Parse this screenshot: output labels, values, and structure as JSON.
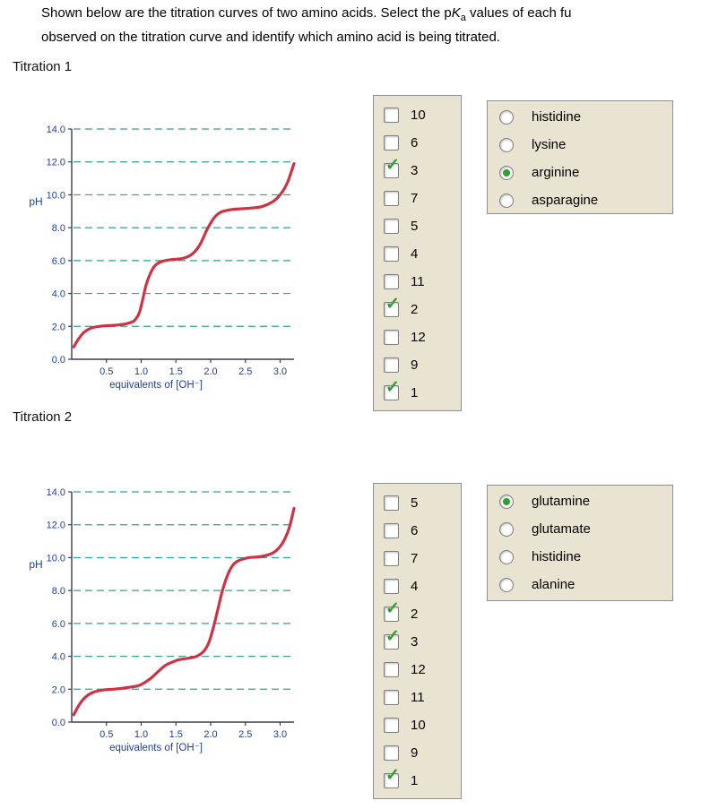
{
  "question": {
    "line1_pre": "Shown below are the titration curves of two amino acids. Select the p",
    "line1_k_italic": "K",
    "line1_k_sub": "a",
    "line1_post": " values of each fu",
    "line2": "observed on the titration curve and identify which amino acid is being titrated."
  },
  "icons": {
    "check": "✓"
  },
  "colors": {
    "curve": "#cc3344",
    "grid": "#2fa28e",
    "axis": "#3b3b4f",
    "tick_text": "#21409a",
    "panel_bg": "#e9e4d1",
    "panel_border": "#8f8f8f",
    "check_green": "#2f9b35",
    "radio_green": "#28a42c"
  },
  "sections": [
    {
      "title": "Titration 1",
      "pka_options": [
        {
          "label": "10",
          "checked": false
        },
        {
          "label": "6",
          "checked": false
        },
        {
          "label": "3",
          "checked": true
        },
        {
          "label": "7",
          "checked": false
        },
        {
          "label": "5",
          "checked": false
        },
        {
          "label": "4",
          "checked": false
        },
        {
          "label": "11",
          "checked": false
        },
        {
          "label": "2",
          "checked": true
        },
        {
          "label": "12",
          "checked": false
        },
        {
          "label": "9",
          "checked": false
        },
        {
          "label": "1",
          "checked": true
        }
      ],
      "amino_options": [
        {
          "label": "histidine",
          "selected": false
        },
        {
          "label": "lysine",
          "selected": false
        },
        {
          "label": "arginine",
          "selected": true
        },
        {
          "label": "asparagine",
          "selected": false
        }
      ]
    },
    {
      "title": "Titration 2",
      "pka_options": [
        {
          "label": "5",
          "checked": false
        },
        {
          "label": "6",
          "checked": false
        },
        {
          "label": "7",
          "checked": false
        },
        {
          "label": "4",
          "checked": false
        },
        {
          "label": "2",
          "checked": true
        },
        {
          "label": "3",
          "checked": true
        },
        {
          "label": "12",
          "checked": false
        },
        {
          "label": "11",
          "checked": false
        },
        {
          "label": "10",
          "checked": false
        },
        {
          "label": "9",
          "checked": false
        },
        {
          "label": "1",
          "checked": true
        }
      ],
      "amino_options": [
        {
          "label": "glutamine",
          "selected": true
        },
        {
          "label": "glutamate",
          "selected": false
        },
        {
          "label": "histidine",
          "selected": false
        },
        {
          "label": "alanine",
          "selected": false
        }
      ]
    }
  ],
  "chart_data": [
    {
      "type": "line",
      "title": "Titration 1",
      "ylabel": "pH",
      "xlabel": "equivalents of [OH⁻]",
      "xlim": [
        0,
        3.2
      ],
      "ylim": [
        0,
        14
      ],
      "xticks": [
        0.5,
        1.0,
        1.5,
        2.0,
        2.5,
        3.0
      ],
      "yticks": [
        0.0,
        2.0,
        4.0,
        6.0,
        8.0,
        10.0,
        12.0,
        14.0
      ],
      "grid_y": [
        2,
        4,
        6,
        8,
        10,
        12,
        14
      ],
      "grid_style": "dashed",
      "legend": "none",
      "curve_color": "#cc3344",
      "points": [
        [
          0.03,
          0.75
        ],
        [
          0.1,
          1.25
        ],
        [
          0.18,
          1.65
        ],
        [
          0.28,
          1.9
        ],
        [
          0.4,
          2.0
        ],
        [
          0.55,
          2.05
        ],
        [
          0.7,
          2.1
        ],
        [
          0.82,
          2.2
        ],
        [
          0.9,
          2.35
        ],
        [
          0.97,
          2.8
        ],
        [
          1.02,
          3.6
        ],
        [
          1.07,
          4.5
        ],
        [
          1.13,
          5.2
        ],
        [
          1.2,
          5.7
        ],
        [
          1.3,
          5.95
        ],
        [
          1.42,
          6.05
        ],
        [
          1.55,
          6.1
        ],
        [
          1.65,
          6.2
        ],
        [
          1.75,
          6.45
        ],
        [
          1.85,
          7.0
        ],
        [
          1.95,
          7.9
        ],
        [
          2.05,
          8.6
        ],
        [
          2.15,
          8.95
        ],
        [
          2.3,
          9.1
        ],
        [
          2.45,
          9.15
        ],
        [
          2.6,
          9.2
        ],
        [
          2.75,
          9.3
        ],
        [
          2.9,
          9.6
        ],
        [
          3.0,
          10.0
        ],
        [
          3.1,
          10.7
        ],
        [
          3.2,
          11.9
        ]
      ]
    },
    {
      "type": "line",
      "title": "Titration 2",
      "ylabel": "pH",
      "xlabel": "equivalents of [OH⁻]",
      "xlim": [
        0,
        3.2
      ],
      "ylim": [
        0,
        14
      ],
      "xticks": [
        0.5,
        1.0,
        1.5,
        2.0,
        2.5,
        3.0
      ],
      "yticks": [
        0.0,
        2.0,
        4.0,
        6.0,
        8.0,
        10.0,
        12.0,
        14.0
      ],
      "grid_y": [
        2,
        4,
        6,
        8,
        10,
        12,
        14
      ],
      "grid_style": "dashed",
      "legend": "none",
      "curve_color": "#cc3344",
      "points": [
        [
          0.03,
          0.45
        ],
        [
          0.1,
          1.0
        ],
        [
          0.18,
          1.45
        ],
        [
          0.3,
          1.8
        ],
        [
          0.45,
          1.95
        ],
        [
          0.6,
          2.0
        ],
        [
          0.8,
          2.1
        ],
        [
          0.95,
          2.2
        ],
        [
          1.05,
          2.4
        ],
        [
          1.15,
          2.7
        ],
        [
          1.25,
          3.1
        ],
        [
          1.35,
          3.45
        ],
        [
          1.45,
          3.65
        ],
        [
          1.55,
          3.8
        ],
        [
          1.7,
          3.9
        ],
        [
          1.8,
          4.0
        ],
        [
          1.9,
          4.3
        ],
        [
          1.97,
          4.8
        ],
        [
          2.03,
          5.6
        ],
        [
          2.1,
          6.8
        ],
        [
          2.17,
          8.0
        ],
        [
          2.25,
          9.0
        ],
        [
          2.33,
          9.6
        ],
        [
          2.42,
          9.85
        ],
        [
          2.55,
          10.0
        ],
        [
          2.7,
          10.05
        ],
        [
          2.85,
          10.2
        ],
        [
          2.95,
          10.45
        ],
        [
          3.05,
          11.0
        ],
        [
          3.13,
          11.8
        ],
        [
          3.2,
          13.0
        ]
      ]
    }
  ]
}
